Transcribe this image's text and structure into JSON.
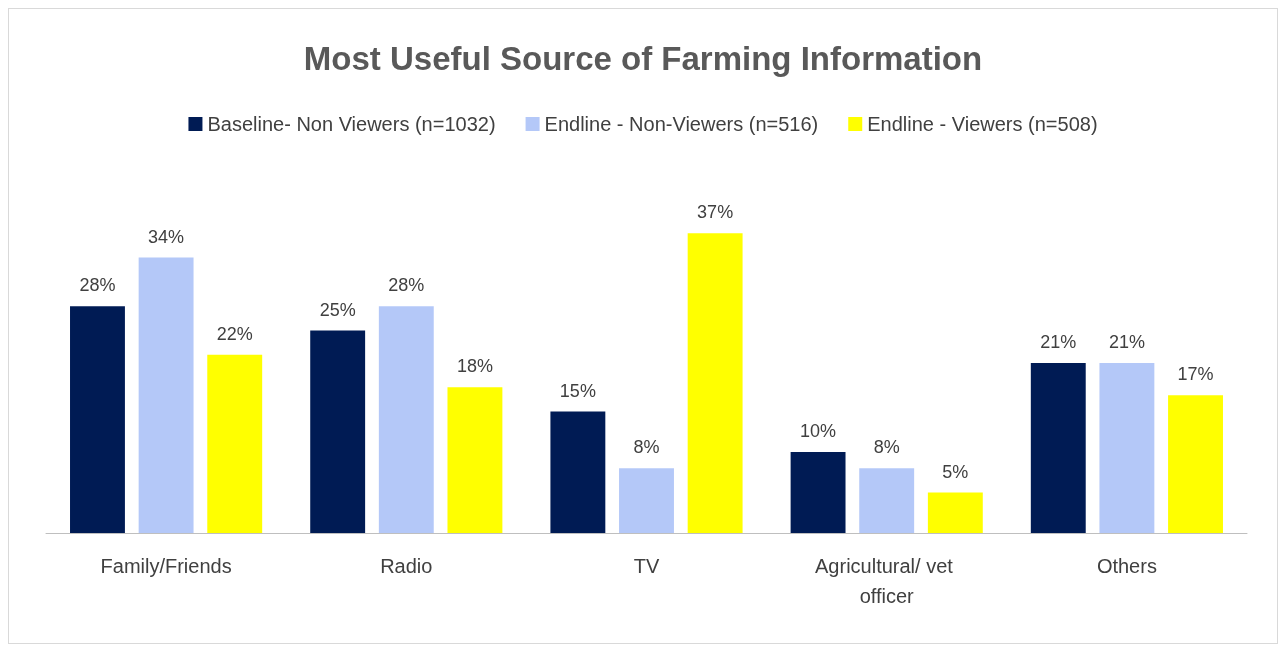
{
  "chart_data": {
    "type": "bar",
    "title": "Most Useful Source of Farming Information",
    "categories": [
      "Family/Friends",
      "Radio",
      "TV",
      "Agricultural/ vet officer",
      "Others"
    ],
    "series": [
      {
        "name": "Baseline- Non Viewers (n=1032)",
        "color": "#001b54",
        "values": [
          28,
          25,
          15,
          10,
          21
        ],
        "value_labels": [
          "28%",
          "25%",
          "15%",
          "10%",
          "21%"
        ]
      },
      {
        "name": "Endline - Non-Viewers (n=516)",
        "color": "#b4c8f8",
        "values": [
          34,
          28,
          8,
          8,
          21
        ],
        "value_labels": [
          "34%",
          "28%",
          "8%",
          "8%",
          "21%"
        ]
      },
      {
        "name": "Endline - Viewers (n=508)",
        "color": "#ffff00",
        "values": [
          22,
          18,
          37,
          5,
          17
        ],
        "value_labels": [
          "22%",
          "18%",
          "37%",
          "5%",
          "17%"
        ]
      }
    ],
    "legend": "top"
  }
}
